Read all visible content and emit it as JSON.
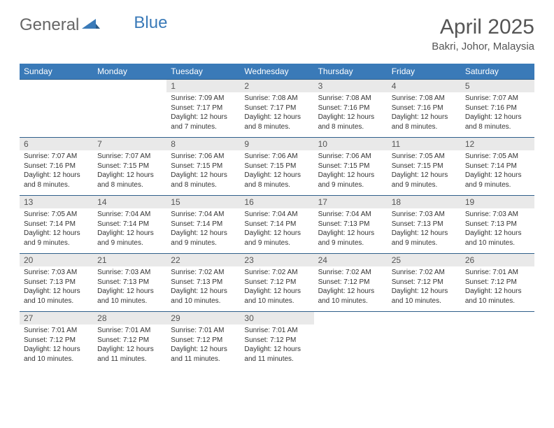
{
  "logo": {
    "text1": "General",
    "text2": "Blue"
  },
  "title": "April 2025",
  "location": "Bakri, Johor, Malaysia",
  "colors": {
    "header_bar": "#3a7ab8",
    "header_text": "#ffffff",
    "daynum_bg": "#e9e9e9",
    "daynum_border": "#2f5f8a",
    "body_text": "#333333",
    "title_text": "#555555",
    "logo_gray": "#666666",
    "logo_blue": "#3a7ab8",
    "background": "#ffffff"
  },
  "fonts": {
    "title_size_pt": 22,
    "location_size_pt": 11,
    "dow_size_pt": 9,
    "daynum_size_pt": 9,
    "cell_size_pt": 7.5
  },
  "dayNames": [
    "Sunday",
    "Monday",
    "Tuesday",
    "Wednesday",
    "Thursday",
    "Friday",
    "Saturday"
  ],
  "weeks": [
    [
      null,
      null,
      {
        "n": "1",
        "sr": "7:09 AM",
        "ss": "7:17 PM",
        "dl": "12 hours and 7 minutes."
      },
      {
        "n": "2",
        "sr": "7:08 AM",
        "ss": "7:17 PM",
        "dl": "12 hours and 8 minutes."
      },
      {
        "n": "3",
        "sr": "7:08 AM",
        "ss": "7:16 PM",
        "dl": "12 hours and 8 minutes."
      },
      {
        "n": "4",
        "sr": "7:08 AM",
        "ss": "7:16 PM",
        "dl": "12 hours and 8 minutes."
      },
      {
        "n": "5",
        "sr": "7:07 AM",
        "ss": "7:16 PM",
        "dl": "12 hours and 8 minutes."
      }
    ],
    [
      {
        "n": "6",
        "sr": "7:07 AM",
        "ss": "7:16 PM",
        "dl": "12 hours and 8 minutes."
      },
      {
        "n": "7",
        "sr": "7:07 AM",
        "ss": "7:15 PM",
        "dl": "12 hours and 8 minutes."
      },
      {
        "n": "8",
        "sr": "7:06 AM",
        "ss": "7:15 PM",
        "dl": "12 hours and 8 minutes."
      },
      {
        "n": "9",
        "sr": "7:06 AM",
        "ss": "7:15 PM",
        "dl": "12 hours and 8 minutes."
      },
      {
        "n": "10",
        "sr": "7:06 AM",
        "ss": "7:15 PM",
        "dl": "12 hours and 9 minutes."
      },
      {
        "n": "11",
        "sr": "7:05 AM",
        "ss": "7:15 PM",
        "dl": "12 hours and 9 minutes."
      },
      {
        "n": "12",
        "sr": "7:05 AM",
        "ss": "7:14 PM",
        "dl": "12 hours and 9 minutes."
      }
    ],
    [
      {
        "n": "13",
        "sr": "7:05 AM",
        "ss": "7:14 PM",
        "dl": "12 hours and 9 minutes."
      },
      {
        "n": "14",
        "sr": "7:04 AM",
        "ss": "7:14 PM",
        "dl": "12 hours and 9 minutes."
      },
      {
        "n": "15",
        "sr": "7:04 AM",
        "ss": "7:14 PM",
        "dl": "12 hours and 9 minutes."
      },
      {
        "n": "16",
        "sr": "7:04 AM",
        "ss": "7:14 PM",
        "dl": "12 hours and 9 minutes."
      },
      {
        "n": "17",
        "sr": "7:04 AM",
        "ss": "7:13 PM",
        "dl": "12 hours and 9 minutes."
      },
      {
        "n": "18",
        "sr": "7:03 AM",
        "ss": "7:13 PM",
        "dl": "12 hours and 9 minutes."
      },
      {
        "n": "19",
        "sr": "7:03 AM",
        "ss": "7:13 PM",
        "dl": "12 hours and 10 minutes."
      }
    ],
    [
      {
        "n": "20",
        "sr": "7:03 AM",
        "ss": "7:13 PM",
        "dl": "12 hours and 10 minutes."
      },
      {
        "n": "21",
        "sr": "7:03 AM",
        "ss": "7:13 PM",
        "dl": "12 hours and 10 minutes."
      },
      {
        "n": "22",
        "sr": "7:02 AM",
        "ss": "7:13 PM",
        "dl": "12 hours and 10 minutes."
      },
      {
        "n": "23",
        "sr": "7:02 AM",
        "ss": "7:12 PM",
        "dl": "12 hours and 10 minutes."
      },
      {
        "n": "24",
        "sr": "7:02 AM",
        "ss": "7:12 PM",
        "dl": "12 hours and 10 minutes."
      },
      {
        "n": "25",
        "sr": "7:02 AM",
        "ss": "7:12 PM",
        "dl": "12 hours and 10 minutes."
      },
      {
        "n": "26",
        "sr": "7:01 AM",
        "ss": "7:12 PM",
        "dl": "12 hours and 10 minutes."
      }
    ],
    [
      {
        "n": "27",
        "sr": "7:01 AM",
        "ss": "7:12 PM",
        "dl": "12 hours and 10 minutes."
      },
      {
        "n": "28",
        "sr": "7:01 AM",
        "ss": "7:12 PM",
        "dl": "12 hours and 11 minutes."
      },
      {
        "n": "29",
        "sr": "7:01 AM",
        "ss": "7:12 PM",
        "dl": "12 hours and 11 minutes."
      },
      {
        "n": "30",
        "sr": "7:01 AM",
        "ss": "7:12 PM",
        "dl": "12 hours and 11 minutes."
      },
      null,
      null,
      null
    ]
  ],
  "labels": {
    "sunrise": "Sunrise:",
    "sunset": "Sunset:",
    "daylight": "Daylight:"
  }
}
